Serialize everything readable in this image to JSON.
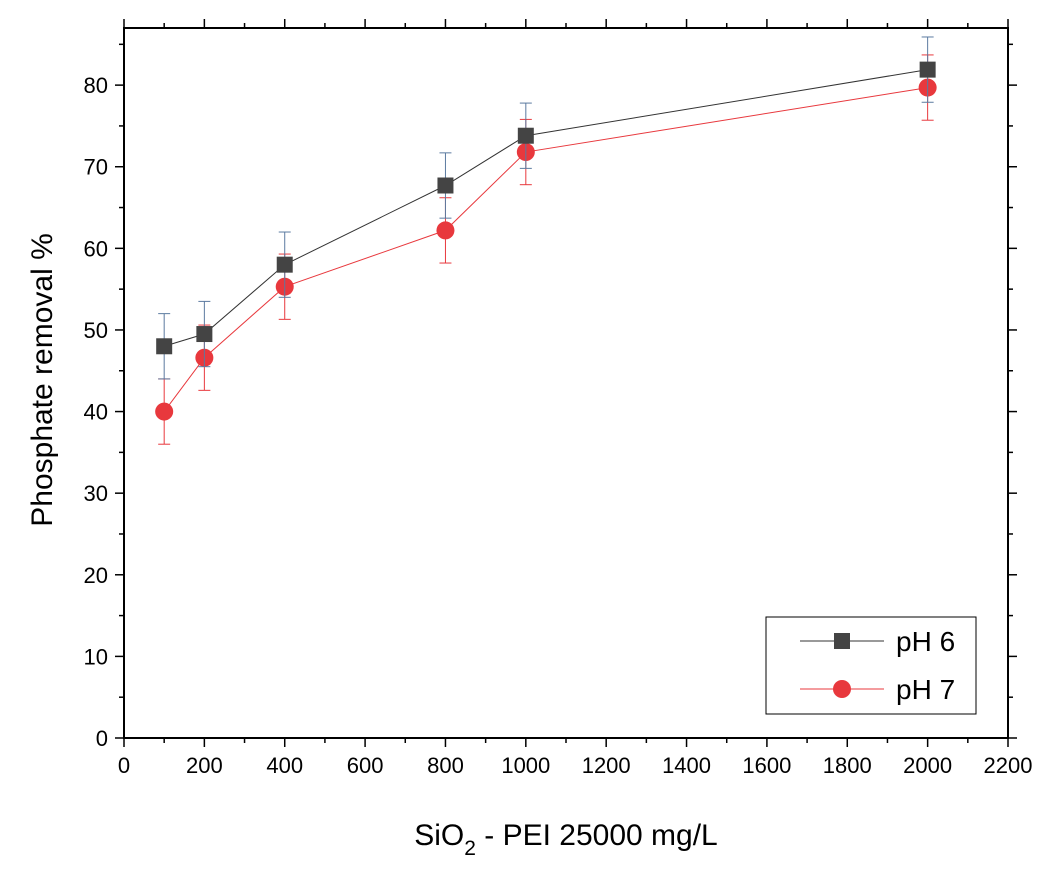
{
  "chart_data": {
    "type": "line",
    "title": "",
    "xlabel": {
      "main": "SiO",
      "subscript": "2",
      "rest": " - PEI 25000 mg/L"
    },
    "ylabel": "Phosphate removal %",
    "xlim": [
      0,
      2200
    ],
    "ylim": [
      0,
      87
    ],
    "x_ticks": [
      0,
      200,
      400,
      600,
      800,
      1000,
      1200,
      1400,
      1600,
      1800,
      2000,
      2200
    ],
    "y_ticks": [
      0,
      10,
      20,
      30,
      40,
      50,
      60,
      70,
      80
    ],
    "grid": false,
    "legend_position": "bottom-right",
    "series": [
      {
        "name": "pH 6",
        "marker": "square",
        "marker_color": "#444444",
        "line_color": "#333333",
        "error_color": "#5b7aa0",
        "x": [
          100,
          200,
          400,
          800,
          1000,
          2000
        ],
        "y": [
          48.0,
          49.5,
          58.0,
          67.7,
          73.8,
          81.9
        ],
        "error": [
          4,
          4,
          4,
          4,
          4,
          4
        ]
      },
      {
        "name": "pH 7",
        "marker": "circle",
        "marker_color": "#e8383d",
        "line_color": "#e8383d",
        "error_color": "#e8383d",
        "x": [
          100,
          200,
          400,
          800,
          1000,
          2000
        ],
        "y": [
          40.0,
          46.6,
          55.3,
          62.2,
          71.8,
          79.7
        ],
        "error": [
          4,
          4,
          4,
          4,
          4,
          4
        ]
      }
    ]
  }
}
